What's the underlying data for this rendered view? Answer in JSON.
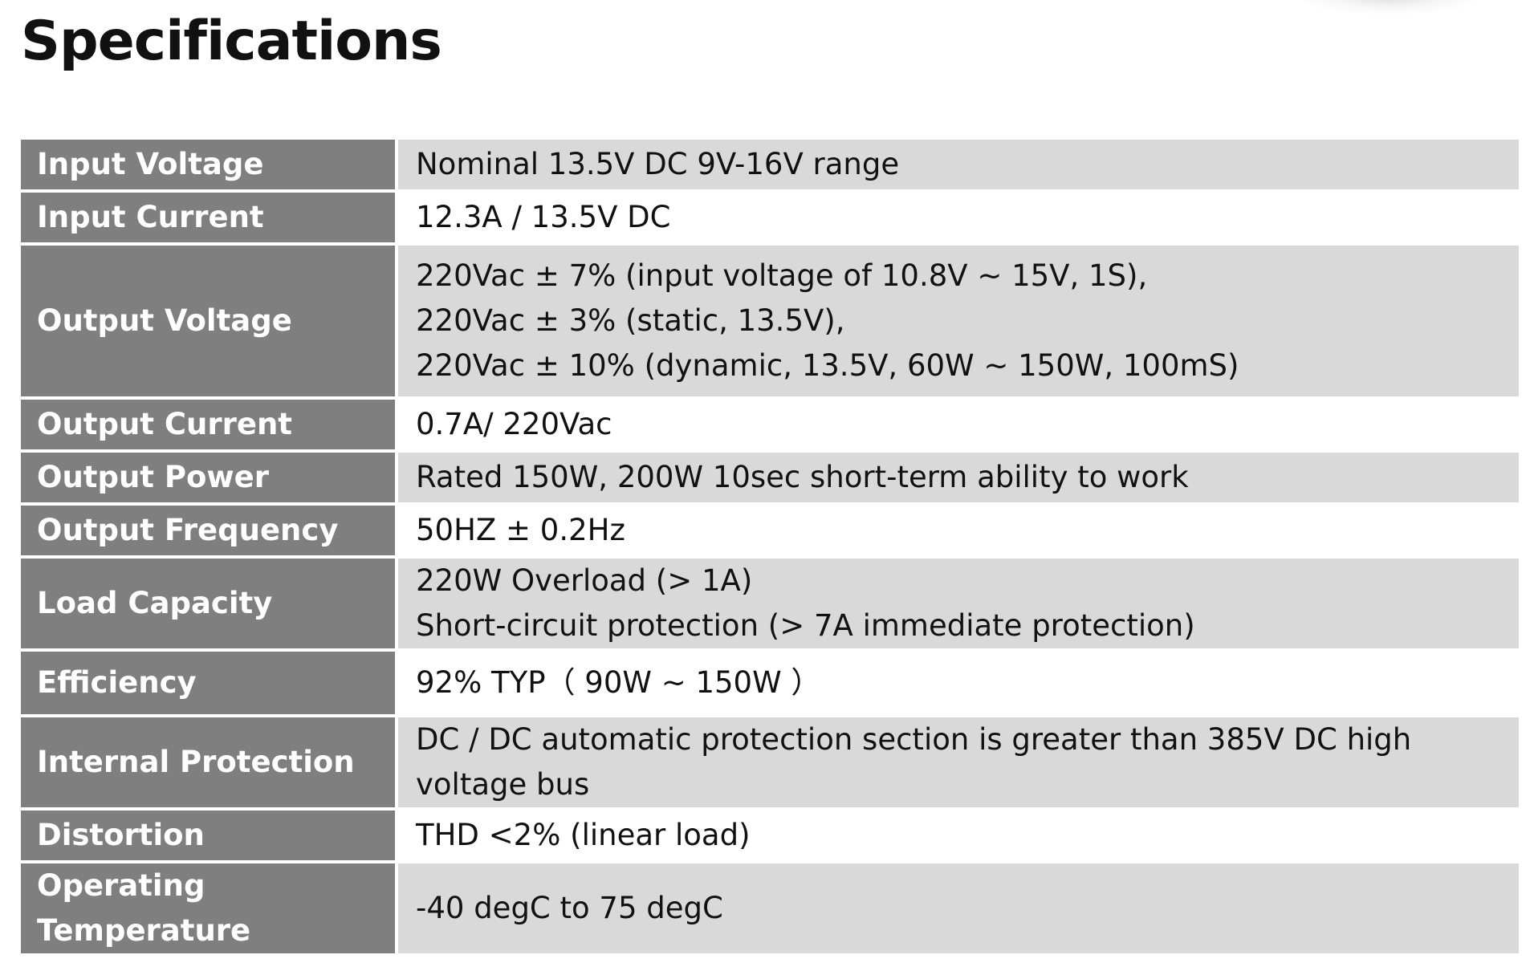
{
  "page": {
    "title": "Specifications"
  },
  "specs": [
    {
      "label": "Input Voltage",
      "lines": [
        "Nominal 13.5V DC 9V-16V range"
      ]
    },
    {
      "label": "Input Current",
      "lines": [
        "12.3A / 13.5V DC"
      ]
    },
    {
      "label": "Output Voltage",
      "lines": [
        "220Vac ± 7% (input voltage of 10.8V ~ 15V, 1S),",
        "220Vac ± 3% (static, 13.5V),",
        "220Vac ± 10% (dynamic, 13.5V, 60W ~ 150W, 100mS)"
      ]
    },
    {
      "label": "Output Current",
      "lines": [
        "0.7A/ 220Vac"
      ]
    },
    {
      "label": "Output Power",
      "lines": [
        "Rated 150W, 200W 10sec short-term ability to work"
      ]
    },
    {
      "label": "Output Frequency",
      "lines": [
        "50HZ ± 0.2Hz"
      ]
    },
    {
      "label": "Load Capacity",
      "lines": [
        "220W Overload (> 1A)",
        "Short-circuit protection (> 7A immediate protection)"
      ]
    },
    {
      "label": "Efficiency",
      "lines": [
        "92% TYP（ 90W ~ 150W ）"
      ]
    },
    {
      "label": "Internal Protection",
      "lines": [
        "DC / DC automatic protection section is greater than 385V DC high voltage bus"
      ]
    },
    {
      "label": "Distortion",
      "lines": [
        "THD <2% (linear load)"
      ]
    },
    {
      "label": "Operating Temperature",
      "lines": [
        "-40 degC to 75 degC"
      ]
    }
  ],
  "colors": {
    "label_bg": "#7f7f7f",
    "value_bg_shaded": "#d9d9d9",
    "value_bg_plain": "#ffffff",
    "label_text": "#ffffff",
    "value_text": "#111111"
  }
}
